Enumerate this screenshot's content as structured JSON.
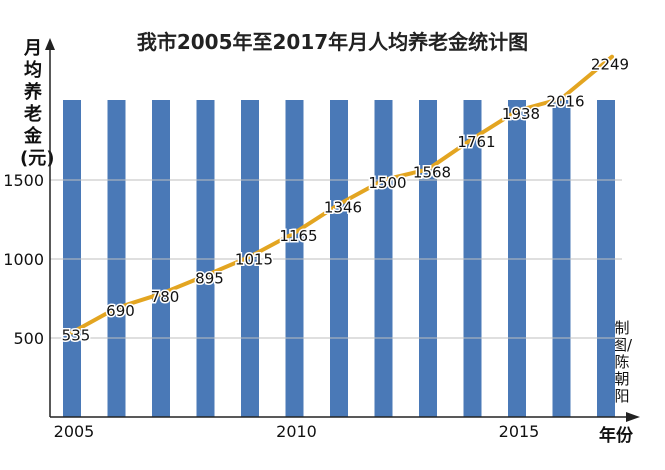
{
  "chart_data": {
    "type": "line",
    "title": "我市2005年至2017年月人均养老金统计图",
    "ylabel": "月均养老金(元)",
    "xlabel": "年份",
    "x": [
      2005,
      2006,
      2007,
      2008,
      2009,
      2010,
      2011,
      2012,
      2013,
      2014,
      2015,
      2016,
      2017
    ],
    "series": [
      {
        "values": [
          535,
          690,
          780,
          895,
          1015,
          1165,
          1346,
          1500,
          1568,
          1761,
          1938,
          2016,
          2249
        ]
      }
    ],
    "x_tick_labels": [
      "2005",
      "2010",
      "2015"
    ],
    "y_ticks": [
      500,
      1000,
      1500
    ],
    "ylim": [
      0,
      2300
    ],
    "grid": true,
    "background_bars": true,
    "colors": {
      "line": "#e3a521",
      "bars": "#4a79b7",
      "grid": "#bfbfbf",
      "axis": "#222222"
    }
  },
  "credit": "制图/陈朝阳"
}
